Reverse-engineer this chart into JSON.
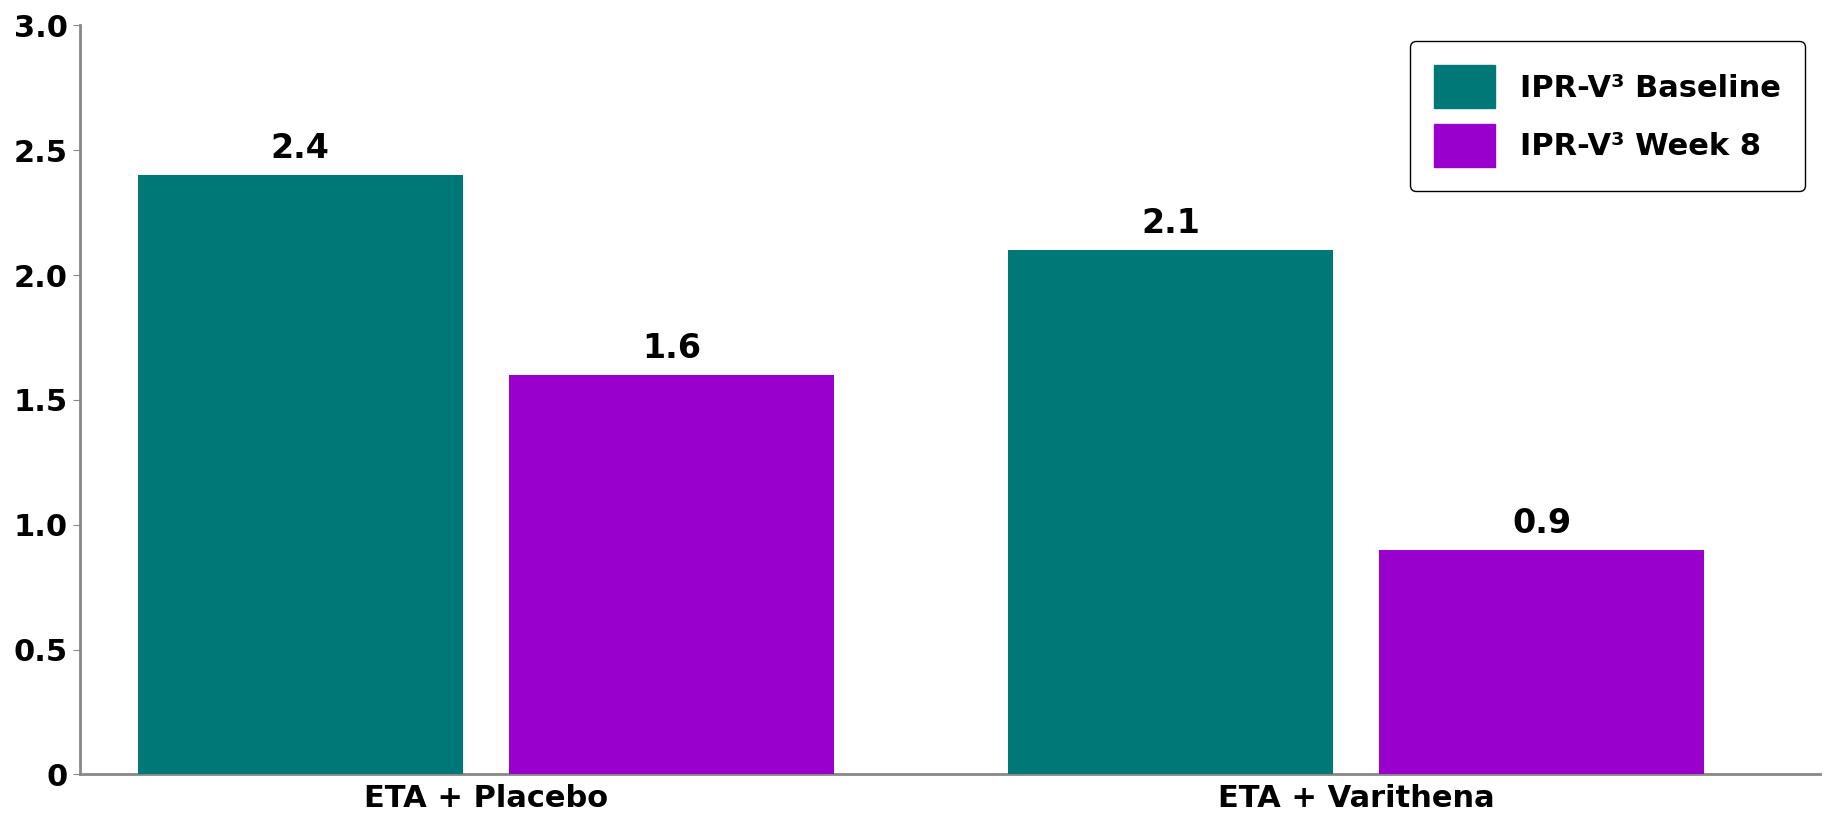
{
  "groups": [
    "ETA + Placebo",
    "ETA + Varithena"
  ],
  "baseline_values": [
    2.4,
    2.1
  ],
  "week8_values": [
    1.6,
    0.9
  ],
  "baseline_color": "#007878",
  "week8_color": "#9900CC",
  "background_color": "#ffffff",
  "plot_bg_color": "#ffffff",
  "bar_width": 0.28,
  "ylim": [
    0,
    3.0
  ],
  "yticks": [
    0,
    0.5,
    1.0,
    1.5,
    2.0,
    2.5,
    3.0
  ],
  "ytick_labels": [
    "0",
    "0.5",
    "1.0",
    "1.5",
    "2.0",
    "2.5",
    "3.0"
  ],
  "legend_baseline": "IPR-V³ Baseline",
  "legend_week8": "IPR-V³ Week 8",
  "label_fontsize": 22,
  "tick_fontsize": 22,
  "value_fontsize": 24,
  "legend_fontsize": 22,
  "axis_border_color": "#888888",
  "group_positions": [
    0.35,
    1.1
  ],
  "xlim": [
    0.0,
    1.5
  ]
}
